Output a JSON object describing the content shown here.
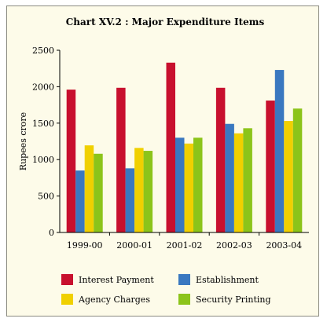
{
  "chart_data": {
    "type": "bar",
    "title": "Chart XV.2 : Major Expenditure Items",
    "xlabel": "",
    "ylabel": "Rupees crore",
    "ylim": [
      0,
      2500
    ],
    "yticks": [
      0,
      500,
      1000,
      1500,
      2000,
      2500
    ],
    "categories": [
      "1999-00",
      "2000-01",
      "2001-02",
      "2002-03",
      "2003-04"
    ],
    "series": [
      {
        "name": "Interest Payment",
        "color": "#c8102e",
        "values": [
          1960,
          1985,
          2330,
          1985,
          1810
        ]
      },
      {
        "name": "Establishment",
        "color": "#3a78c0",
        "values": [
          850,
          880,
          1300,
          1490,
          2230
        ]
      },
      {
        "name": "Agency Charges",
        "color": "#f0d000",
        "values": [
          1195,
          1160,
          1220,
          1360,
          1530
        ]
      },
      {
        "name": "Security Printing",
        "color": "#8cc41a",
        "values": [
          1080,
          1120,
          1300,
          1430,
          1700
        ]
      }
    ],
    "grid": false,
    "legend_position": "bottom"
  }
}
